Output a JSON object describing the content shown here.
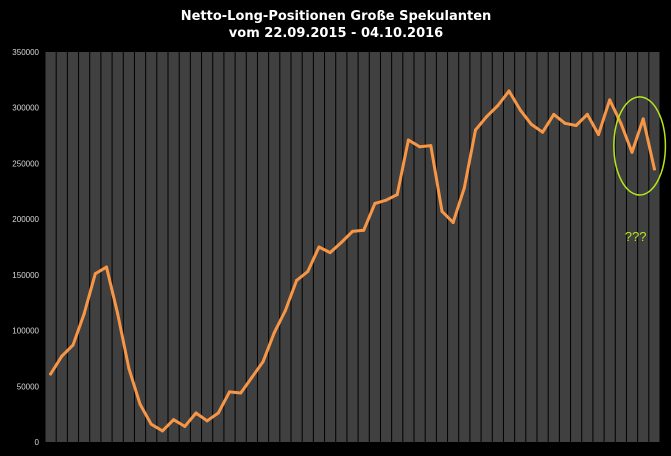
{
  "chart_data": {
    "type": "line",
    "title_lines": [
      "Netto-Long-Positionen  Große Spekulanten",
      "vom 22.09.2015  - 04.10.2016"
    ],
    "xlabel": "",
    "ylabel": "",
    "ylim": [
      0,
      350000
    ],
    "yticks": [
      0,
      50000,
      100000,
      150000,
      200000,
      250000,
      300000,
      350000
    ],
    "ytick_labels": [
      "0",
      "50000",
      "100000",
      "150000",
      "200000",
      "250000",
      "300000",
      "350000"
    ],
    "grid": "vertical lines per data point",
    "legend": "none",
    "colors": {
      "background": "#000000",
      "plot_area": "#404040",
      "grid": "#000000",
      "series": "#f79646",
      "annotation": "#b5e61d"
    },
    "series": [
      {
        "values": [
          61000,
          77000,
          87000,
          115000,
          151000,
          157000,
          115000,
          66000,
          34000,
          16000,
          10000,
          20000,
          14000,
          26000,
          19000,
          26000,
          45000,
          44000,
          58000,
          72000,
          98000,
          118000,
          145000,
          153000,
          175000,
          170000,
          179000,
          189000,
          190000,
          214000,
          217000,
          222000,
          271000,
          265000,
          266000,
          207000,
          197000,
          228000,
          280000,
          292000,
          302000,
          315000,
          298000,
          285000,
          278000,
          294000,
          286000,
          284000,
          294000,
          276000,
          307000,
          286000,
          260000,
          290000,
          245000
        ]
      }
    ],
    "annotations": {
      "circled_region": "last 4 points",
      "text": "???"
    }
  }
}
